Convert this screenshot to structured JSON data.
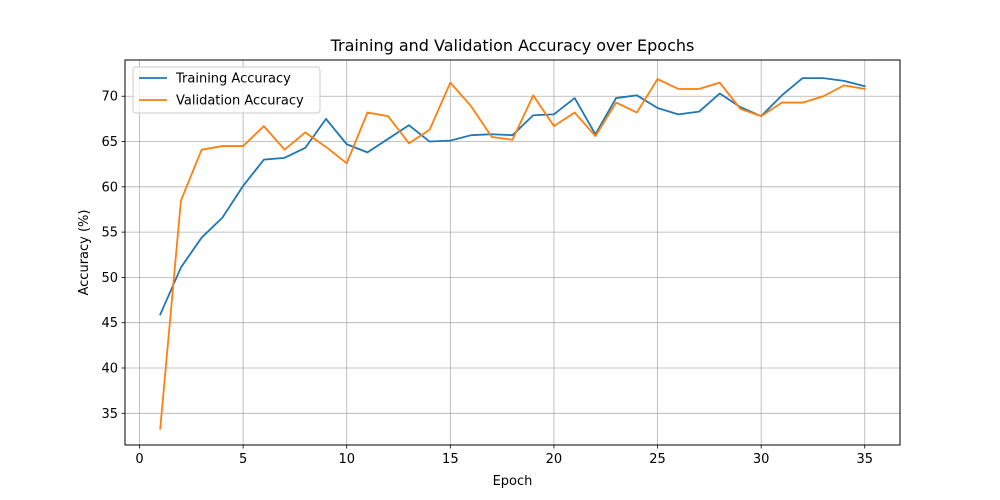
{
  "chart_data": {
    "type": "line",
    "title": "Training and Validation Accuracy over Epochs",
    "xlabel": "Epoch",
    "ylabel": "Accuracy (%)",
    "xlim": [
      -0.7,
      36.7
    ],
    "ylim": [
      31.5,
      74
    ],
    "xticks": [
      0,
      5,
      10,
      15,
      20,
      25,
      30,
      35
    ],
    "yticks": [
      35,
      40,
      45,
      50,
      55,
      60,
      65,
      70
    ],
    "grid": true,
    "legend_position": "top-left",
    "x": [
      1,
      2,
      3,
      4,
      5,
      6,
      7,
      8,
      9,
      10,
      11,
      12,
      13,
      14,
      15,
      16,
      17,
      18,
      19,
      20,
      21,
      22,
      23,
      24,
      25,
      26,
      27,
      28,
      29,
      30,
      31,
      32,
      33,
      34,
      35
    ],
    "series": [
      {
        "name": "Training Accuracy",
        "color": "#1f77b4",
        "values": [
          45.9,
          51.1,
          54.4,
          56.6,
          60.1,
          63.0,
          63.2,
          64.3,
          67.5,
          64.7,
          63.8,
          65.3,
          66.8,
          65.0,
          65.1,
          65.7,
          65.8,
          65.7,
          67.9,
          68.0,
          69.8,
          65.8,
          69.8,
          70.1,
          68.7,
          68.0,
          68.3,
          70.3,
          68.8,
          67.8,
          70.1,
          72.0,
          72.0,
          71.7,
          71.1
        ]
      },
      {
        "name": "Validation Accuracy",
        "color": "#ff7f0e",
        "values": [
          33.3,
          58.5,
          64.1,
          64.5,
          64.5,
          66.7,
          64.1,
          66.0,
          64.4,
          62.6,
          68.2,
          67.8,
          64.8,
          66.3,
          71.5,
          68.9,
          65.5,
          65.2,
          70.1,
          66.7,
          68.2,
          65.6,
          69.3,
          68.2,
          71.9,
          70.8,
          70.8,
          71.5,
          68.6,
          67.8,
          69.3,
          69.3,
          70.0,
          71.2,
          70.8
        ]
      }
    ]
  }
}
